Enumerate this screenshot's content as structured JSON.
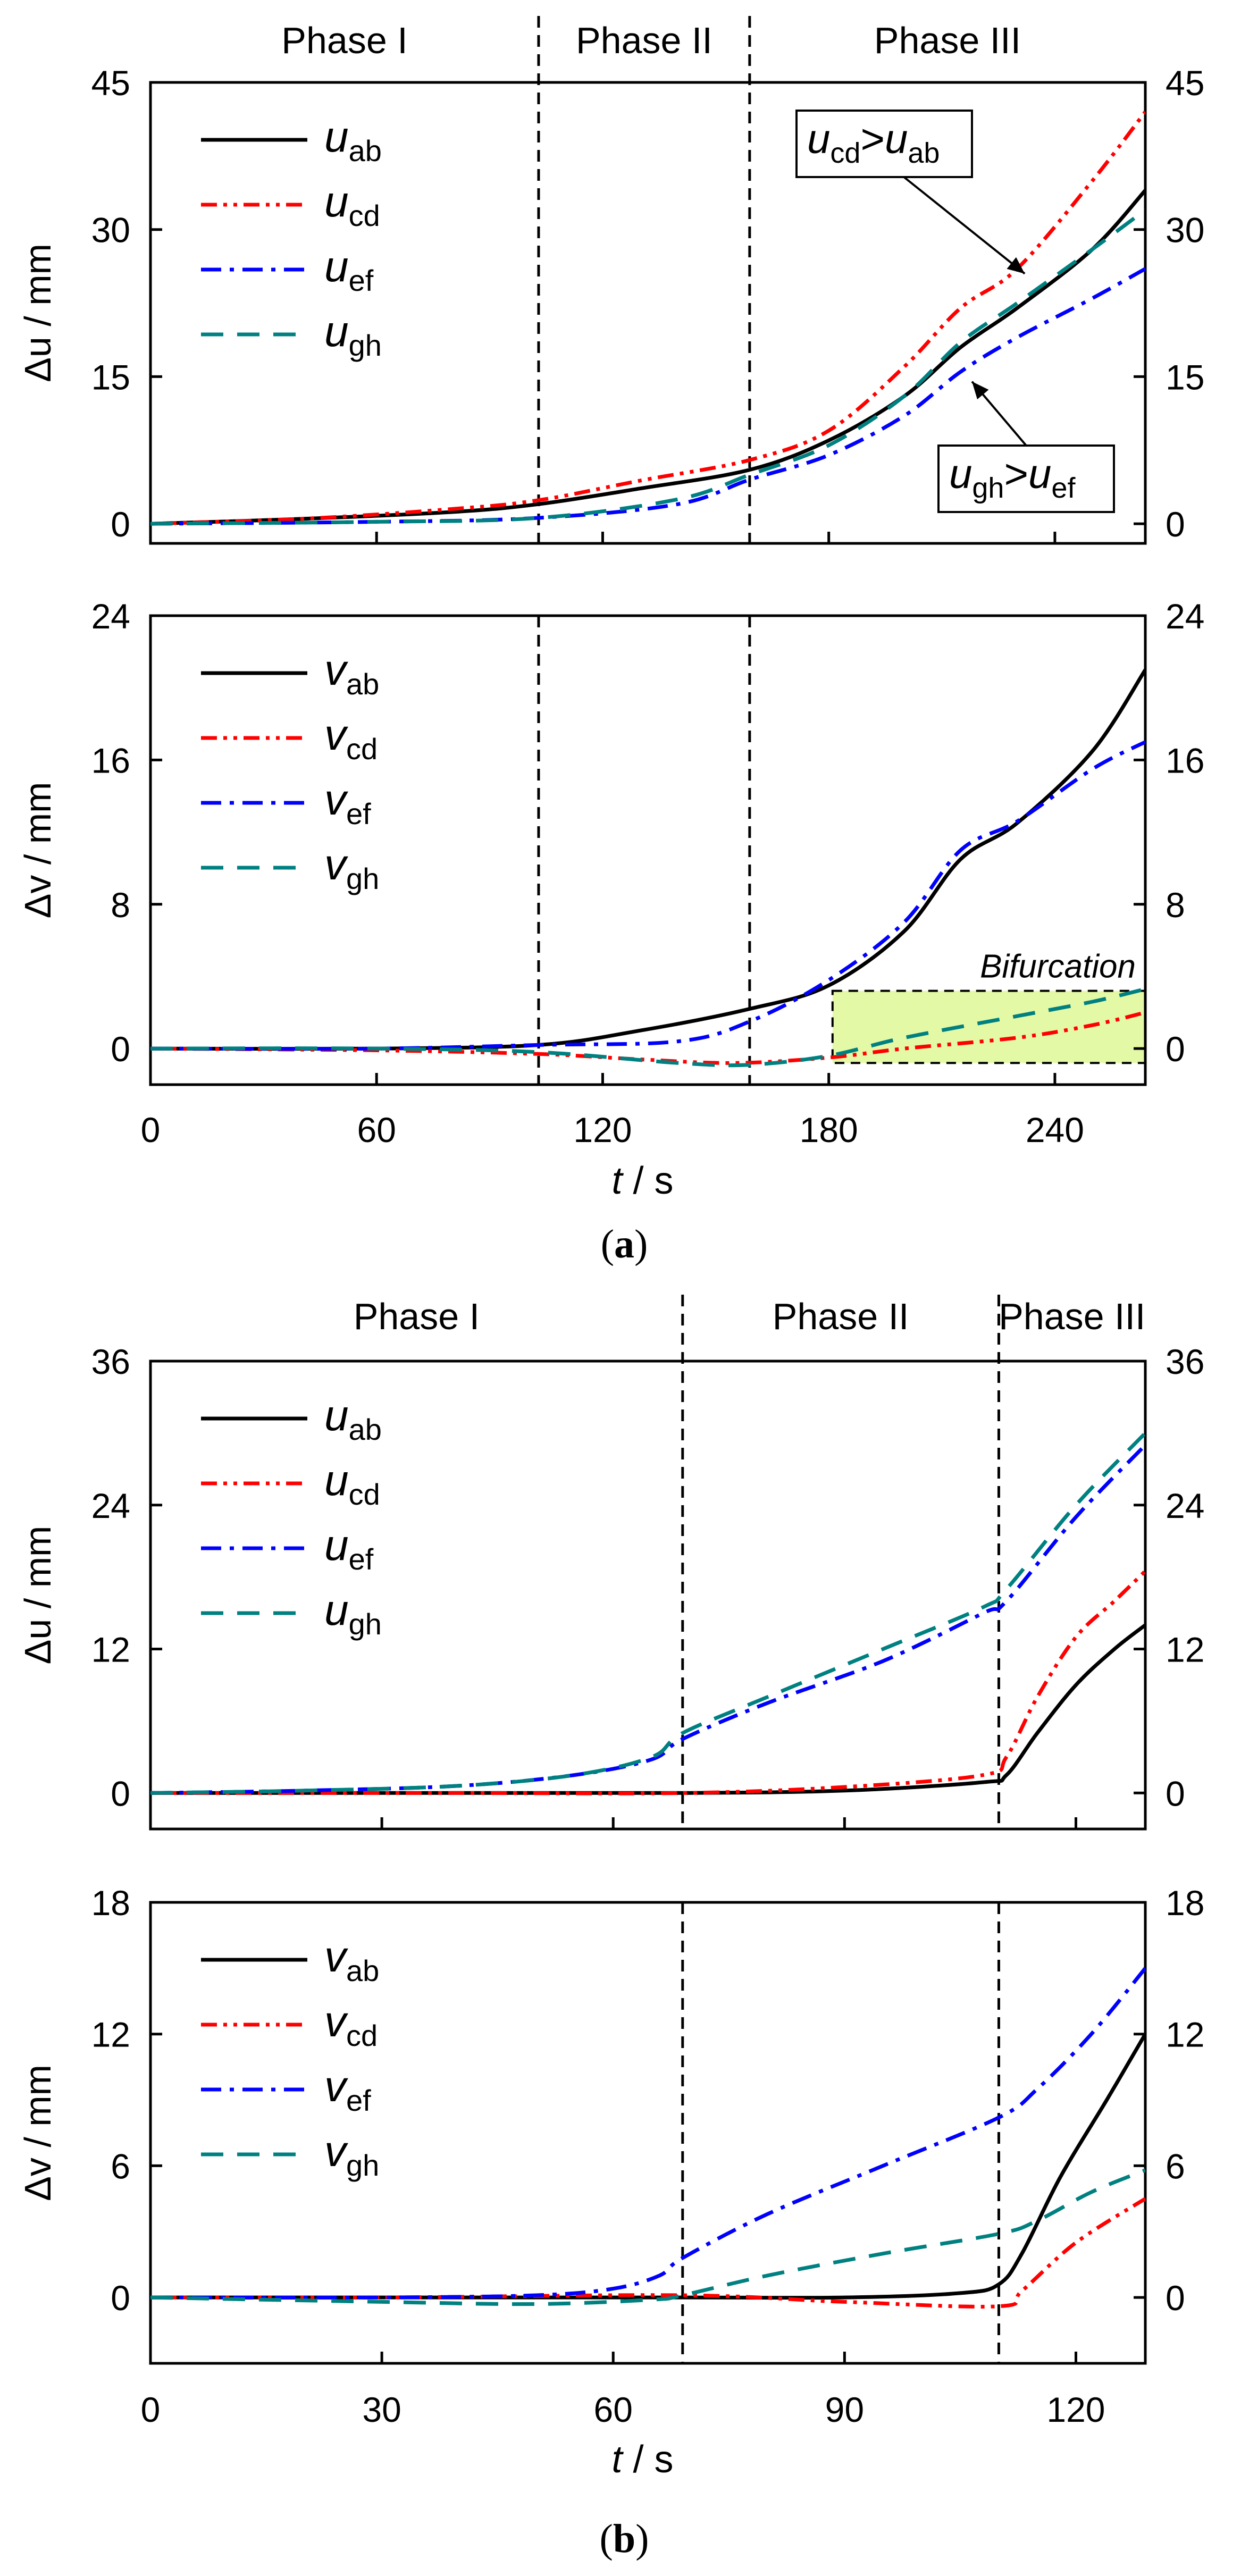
{
  "figure": {
    "panel_a_caption": {
      "open": "(",
      "letter": "a",
      "close": ")"
    },
    "panel_b_caption": {
      "open": "(",
      "letter": "b",
      "close": ")"
    }
  },
  "chart_data": [
    {
      "id": "a_top",
      "type": "line",
      "ylabel": "Δu / mm",
      "xlim": [
        0,
        264
      ],
      "ylim": [
        -2,
        45
      ],
      "yticks": [
        0,
        15,
        30,
        45
      ],
      "show_xticklabels": false,
      "phases": [
        {
          "label": "Phase I",
          "from": 0,
          "to": 103
        },
        {
          "label": "Phase II",
          "from": 103,
          "to": 159
        },
        {
          "label": "Phase III",
          "from": 159,
          "to": 264
        }
      ],
      "dividers": [
        103,
        159
      ],
      "legend_position": "top-left",
      "series": [
        {
          "name": "u",
          "sub": "ab",
          "color": "#000000",
          "dash": "solid",
          "points": [
            [
              0,
              0
            ],
            [
              40,
              0.5
            ],
            [
              80,
              1.2
            ],
            [
              103,
              2
            ],
            [
              130,
              3.6
            ],
            [
              159,
              5.5
            ],
            [
              180,
              8.5
            ],
            [
              200,
              13
            ],
            [
              215,
              18
            ],
            [
              230,
              22
            ],
            [
              250,
              28
            ],
            [
              264,
              34
            ]
          ]
        },
        {
          "name": "u",
          "sub": "cd",
          "color": "#ff0000",
          "dash": "dashdotdot",
          "points": [
            [
              0,
              0
            ],
            [
              40,
              0.5
            ],
            [
              80,
              1.5
            ],
            [
              103,
              2.4
            ],
            [
              130,
              4.4
            ],
            [
              159,
              6.5
            ],
            [
              180,
              9.5
            ],
            [
              200,
              16
            ],
            [
              215,
              22
            ],
            [
              230,
              26
            ],
            [
              250,
              35
            ],
            [
              264,
              42
            ]
          ]
        },
        {
          "name": "u",
          "sub": "ef",
          "color": "#0000ff",
          "dash": "dashdot",
          "points": [
            [
              0,
              0
            ],
            [
              60,
              0.2
            ],
            [
              103,
              0.6
            ],
            [
              140,
              2
            ],
            [
              159,
              4.5
            ],
            [
              180,
              7
            ],
            [
              200,
              11
            ],
            [
              215,
              15.5
            ],
            [
              230,
              19
            ],
            [
              250,
              23
            ],
            [
              264,
              26
            ]
          ]
        },
        {
          "name": "u",
          "sub": "gh",
          "color": "#008080",
          "dash": "dashed",
          "points": [
            [
              0,
              0
            ],
            [
              60,
              0.2
            ],
            [
              103,
              0.6
            ],
            [
              140,
              2.5
            ],
            [
              159,
              5
            ],
            [
              180,
              8
            ],
            [
              200,
              13
            ],
            [
              215,
              18.5
            ],
            [
              230,
              22.5
            ],
            [
              250,
              28
            ],
            [
              264,
              32
            ]
          ]
        }
      ],
      "annotations": [
        {
          "main": "u",
          "sub": "cd",
          "op": ">",
          "main2": "u",
          "sub2": "ab",
          "target_x": 232,
          "target_y": 25.5
        },
        {
          "main": "u",
          "sub": "gh",
          "op": ">",
          "main2": "u",
          "sub2": "ef",
          "target_x": 218,
          "target_y": 14.5
        }
      ]
    },
    {
      "id": "a_bottom",
      "type": "line",
      "ylabel": "Δv / mm",
      "xlabel_var": "t",
      "xlabel_unit": " / s",
      "xlim": [
        0,
        264
      ],
      "ylim": [
        -2,
        24
      ],
      "yticks": [
        0,
        8,
        16,
        24
      ],
      "xticks": [
        0,
        60,
        120,
        180,
        240
      ],
      "show_xticklabels": true,
      "dividers": [
        103,
        159
      ],
      "legend_position": "top-left",
      "series": [
        {
          "name": "v",
          "sub": "ab",
          "color": "#000000",
          "dash": "solid",
          "points": [
            [
              0,
              0
            ],
            [
              60,
              0
            ],
            [
              103,
              0.2
            ],
            [
              130,
              1
            ],
            [
              159,
              2.2
            ],
            [
              180,
              3.5
            ],
            [
              200,
              6.5
            ],
            [
              215,
              10.5
            ],
            [
              230,
              12.5
            ],
            [
              250,
              16.5
            ],
            [
              264,
              21
            ]
          ]
        },
        {
          "name": "v",
          "sub": "cd",
          "color": "#ff0000",
          "dash": "dashdotdot",
          "points": [
            [
              0,
              0
            ],
            [
              60,
              -0.1
            ],
            [
              103,
              -0.3
            ],
            [
              130,
              -0.6
            ],
            [
              155,
              -0.8
            ],
            [
              180,
              -0.5
            ],
            [
              200,
              0
            ],
            [
              230,
              0.6
            ],
            [
              250,
              1.3
            ],
            [
              264,
              2
            ]
          ]
        },
        {
          "name": "v",
          "sub": "ef",
          "color": "#0000ff",
          "dash": "dashdot",
          "points": [
            [
              0,
              0
            ],
            [
              60,
              0
            ],
            [
              103,
              0.2
            ],
            [
              140,
              0.4
            ],
            [
              159,
              1.5
            ],
            [
              180,
              3.8
            ],
            [
              200,
              7
            ],
            [
              215,
              11
            ],
            [
              230,
              12.6
            ],
            [
              250,
              15.5
            ],
            [
              264,
              17
            ]
          ]
        },
        {
          "name": "v",
          "sub": "gh",
          "color": "#008080",
          "dash": "dashed",
          "points": [
            [
              0,
              0
            ],
            [
              60,
              0
            ],
            [
              103,
              -0.2
            ],
            [
              140,
              -0.8
            ],
            [
              159,
              -0.9
            ],
            [
              180,
              -0.4
            ],
            [
              200,
              0.6
            ],
            [
              230,
              1.8
            ],
            [
              250,
              2.6
            ],
            [
              264,
              3.3
            ]
          ]
        }
      ],
      "highlight": {
        "label": "Bifurcation",
        "x0": 181,
        "x1": 264,
        "y0": -0.8,
        "y1": 3.2,
        "color": "#e4f9a6"
      }
    },
    {
      "id": "b_top",
      "type": "line",
      "ylabel": "Δu / mm",
      "xlim": [
        0,
        129
      ],
      "ylim": [
        -3,
        36
      ],
      "yticks": [
        0,
        12,
        24,
        36
      ],
      "show_xticklabels": false,
      "phases": [
        {
          "label": "Phase I",
          "from": 0,
          "to": 69
        },
        {
          "label": "Phase II",
          "from": 69,
          "to": 110
        },
        {
          "label": "Phase III",
          "from": 110,
          "to": 129
        }
      ],
      "dividers": [
        69,
        110
      ],
      "legend_position": "top-left",
      "series": [
        {
          "name": "u",
          "sub": "ab",
          "color": "#000000",
          "dash": "solid",
          "points": [
            [
              0,
              0
            ],
            [
              40,
              0
            ],
            [
              69,
              0
            ],
            [
              90,
              0.2
            ],
            [
              108,
              0.9
            ],
            [
              111,
              1.5
            ],
            [
              115,
              5
            ],
            [
              120,
              9
            ],
            [
              125,
              12
            ],
            [
              129,
              14
            ]
          ]
        },
        {
          "name": "u",
          "sub": "cd",
          "color": "#ff0000",
          "dash": "dashdotdot",
          "points": [
            [
              0,
              0
            ],
            [
              40,
              0
            ],
            [
              69,
              0
            ],
            [
              90,
              0.5
            ],
            [
              108,
              1.5
            ],
            [
              111,
              3
            ],
            [
              115,
              8
            ],
            [
              120,
              13
            ],
            [
              125,
              16
            ],
            [
              129,
              18.5
            ]
          ]
        },
        {
          "name": "u",
          "sub": "ef",
          "color": "#0000ff",
          "dash": "dashdot",
          "points": [
            [
              0,
              0
            ],
            [
              20,
              0.2
            ],
            [
              40,
              0.6
            ],
            [
              55,
              1.5
            ],
            [
              65,
              2.8
            ],
            [
              69,
              4.5
            ],
            [
              80,
              7.5
            ],
            [
              95,
              11
            ],
            [
              108,
              15
            ],
            [
              111,
              16
            ],
            [
              120,
              23
            ],
            [
              129,
              29
            ]
          ]
        },
        {
          "name": "u",
          "sub": "gh",
          "color": "#008080",
          "dash": "dashed",
          "points": [
            [
              0,
              0
            ],
            [
              20,
              0.2
            ],
            [
              40,
              0.6
            ],
            [
              55,
              1.5
            ],
            [
              65,
              3
            ],
            [
              69,
              5
            ],
            [
              80,
              8
            ],
            [
              95,
              12
            ],
            [
              108,
              15.5
            ],
            [
              111,
              17
            ],
            [
              120,
              24
            ],
            [
              129,
              30
            ]
          ]
        }
      ]
    },
    {
      "id": "b_bottom",
      "type": "line",
      "ylabel": "Δv / mm",
      "xlabel_var": "t",
      "xlabel_unit": " / s",
      "xlim": [
        0,
        129
      ],
      "ylim": [
        -3,
        18
      ],
      "yticks": [
        0,
        6,
        12,
        18
      ],
      "xticks": [
        0,
        30,
        60,
        90,
        120
      ],
      "show_xticklabels": true,
      "dividers": [
        69,
        110
      ],
      "legend_position": "top-left",
      "series": [
        {
          "name": "v",
          "sub": "ab",
          "color": "#000000",
          "dash": "solid",
          "points": [
            [
              0,
              0
            ],
            [
              30,
              0
            ],
            [
              69,
              0
            ],
            [
              90,
              0
            ],
            [
              105,
              0.2
            ],
            [
              110,
              0.6
            ],
            [
              113,
              2
            ],
            [
              118,
              5.5
            ],
            [
              124,
              9
            ],
            [
              129,
              12
            ]
          ]
        },
        {
          "name": "v",
          "sub": "cd",
          "color": "#ff0000",
          "dash": "dashdotdot",
          "points": [
            [
              0,
              0
            ],
            [
              30,
              0
            ],
            [
              69,
              0.1
            ],
            [
              90,
              -0.2
            ],
            [
              110,
              -0.4
            ],
            [
              113,
              0.3
            ],
            [
              120,
              2.5
            ],
            [
              129,
              4.5
            ]
          ]
        },
        {
          "name": "v",
          "sub": "ef",
          "color": "#0000ff",
          "dash": "dashdot",
          "points": [
            [
              0,
              0
            ],
            [
              30,
              0
            ],
            [
              50,
              0.1
            ],
            [
              60,
              0.4
            ],
            [
              66,
              1
            ],
            [
              69,
              1.8
            ],
            [
              80,
              3.8
            ],
            [
              95,
              6
            ],
            [
              110,
              8.2
            ],
            [
              115,
              9.5
            ],
            [
              122,
              12
            ],
            [
              129,
              15
            ]
          ]
        },
        {
          "name": "v",
          "sub": "gh",
          "color": "#008080",
          "dash": "dashed",
          "points": [
            [
              0,
              0
            ],
            [
              30,
              -0.2
            ],
            [
              50,
              -0.3
            ],
            [
              65,
              -0.1
            ],
            [
              69,
              0.1
            ],
            [
              80,
              1
            ],
            [
              95,
              2
            ],
            [
              110,
              2.9
            ],
            [
              115,
              3.5
            ],
            [
              122,
              4.8
            ],
            [
              129,
              5.8
            ]
          ]
        }
      ]
    }
  ]
}
